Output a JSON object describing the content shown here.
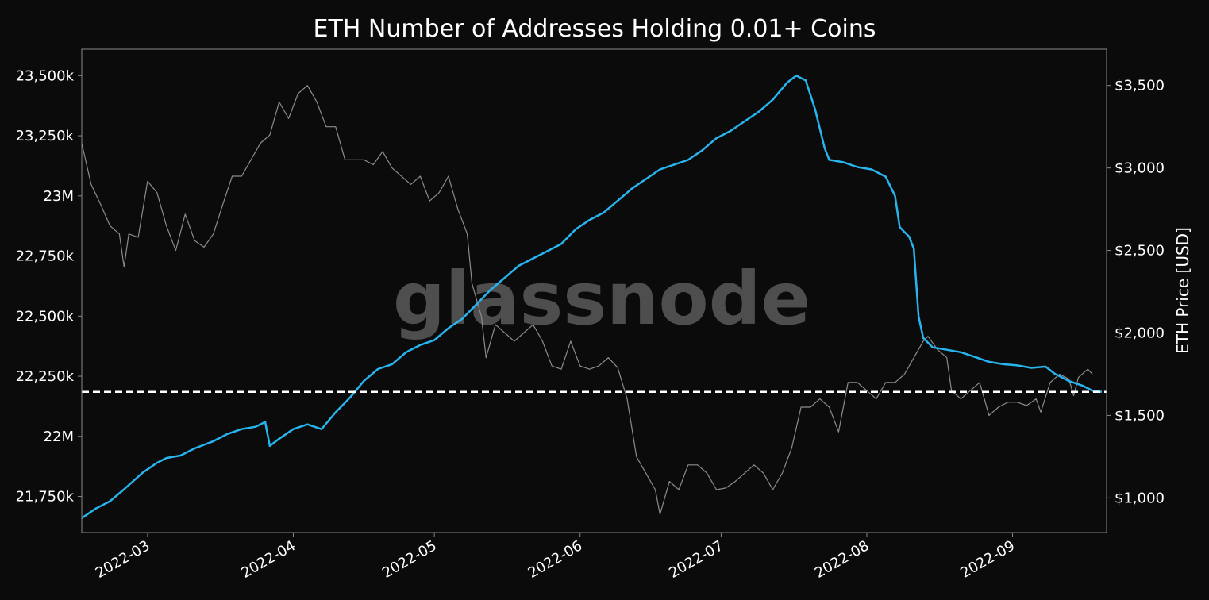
{
  "watermark": "glassnode",
  "colors": {
    "background": "#0b0b0b",
    "plot_background": "#0b0b0b",
    "addresses_line": "#28b4ee",
    "price_line": "#8c8c8c",
    "reference_line": "#ffffff",
    "text": "#ffffff",
    "axis": "#888888"
  },
  "chart_data": {
    "type": "line",
    "title": "ETH Number of Addresses Holding 0.01+ Coins",
    "xlabel": "",
    "ylabel_left": "",
    "ylabel_right": "ETH Price [USD]",
    "x_range": [
      "2022-02-15",
      "2022-09-21"
    ],
    "x_ticks": [
      {
        "date": "2022-03-01",
        "label": "2022-03"
      },
      {
        "date": "2022-04-01",
        "label": "2022-04"
      },
      {
        "date": "2022-05-01",
        "label": "2022-05"
      },
      {
        "date": "2022-06-01",
        "label": "2022-06"
      },
      {
        "date": "2022-07-01",
        "label": "2022-07"
      },
      {
        "date": "2022-08-01",
        "label": "2022-08"
      },
      {
        "date": "2022-09-01",
        "label": "2022-09"
      }
    ],
    "y_left_range": [
      21600000,
      23610000
    ],
    "y_left_ticks": [
      {
        "value": 21750000,
        "label": "21,750k"
      },
      {
        "value": 22000000,
        "label": "22M"
      },
      {
        "value": 22250000,
        "label": "22,250k"
      },
      {
        "value": 22500000,
        "label": "22,500k"
      },
      {
        "value": 22750000,
        "label": "22,750k"
      },
      {
        "value": 23000000,
        "label": "23M"
      },
      {
        "value": 23250000,
        "label": "23,250k"
      },
      {
        "value": 23500000,
        "label": "23,500k"
      }
    ],
    "y_right_range": [
      790,
      3720
    ],
    "y_right_ticks": [
      {
        "value": 1000,
        "label": "$1,000"
      },
      {
        "value": 1500,
        "label": "$1,500"
      },
      {
        "value": 2000,
        "label": "$2,000"
      },
      {
        "value": 2500,
        "label": "$2,500"
      },
      {
        "value": 3000,
        "label": "$3,000"
      },
      {
        "value": 3500,
        "label": "$3,500"
      }
    ],
    "reference_line": {
      "axis": "left",
      "value": 22185000,
      "style": "dashed"
    },
    "grid": false,
    "legend": "none",
    "series": [
      {
        "axis": "left",
        "points": [
          [
            "2022-02-15",
            21660000
          ],
          [
            "2022-02-18",
            21700000
          ],
          [
            "2022-02-21",
            21730000
          ],
          [
            "2022-02-24",
            21780000
          ],
          [
            "2022-02-28",
            21850000
          ],
          [
            "2022-03-03",
            21890000
          ],
          [
            "2022-03-05",
            21910000
          ],
          [
            "2022-03-08",
            21920000
          ],
          [
            "2022-03-11",
            21950000
          ],
          [
            "2022-03-15",
            21980000
          ],
          [
            "2022-03-18",
            22010000
          ],
          [
            "2022-03-21",
            22030000
          ],
          [
            "2022-03-24",
            22040000
          ],
          [
            "2022-03-26",
            22060000
          ],
          [
            "2022-03-27",
            21960000
          ],
          [
            "2022-03-29",
            21990000
          ],
          [
            "2022-04-01",
            22030000
          ],
          [
            "2022-04-04",
            22050000
          ],
          [
            "2022-04-07",
            22030000
          ],
          [
            "2022-04-10",
            22100000
          ],
          [
            "2022-04-13",
            22160000
          ],
          [
            "2022-04-16",
            22230000
          ],
          [
            "2022-04-19",
            22280000
          ],
          [
            "2022-04-22",
            22300000
          ],
          [
            "2022-04-25",
            22350000
          ],
          [
            "2022-04-28",
            22380000
          ],
          [
            "2022-05-01",
            22400000
          ],
          [
            "2022-05-04",
            22450000
          ],
          [
            "2022-05-07",
            22490000
          ],
          [
            "2022-05-10",
            22550000
          ],
          [
            "2022-05-13",
            22610000
          ],
          [
            "2022-05-16",
            22660000
          ],
          [
            "2022-05-19",
            22710000
          ],
          [
            "2022-05-22",
            22740000
          ],
          [
            "2022-05-25",
            22770000
          ],
          [
            "2022-05-28",
            22800000
          ],
          [
            "2022-05-31",
            22860000
          ],
          [
            "2022-06-03",
            22900000
          ],
          [
            "2022-06-06",
            22930000
          ],
          [
            "2022-06-09",
            22980000
          ],
          [
            "2022-06-12",
            23030000
          ],
          [
            "2022-06-15",
            23070000
          ],
          [
            "2022-06-18",
            23110000
          ],
          [
            "2022-06-21",
            23130000
          ],
          [
            "2022-06-24",
            23150000
          ],
          [
            "2022-06-27",
            23190000
          ],
          [
            "2022-06-30",
            23240000
          ],
          [
            "2022-07-03",
            23270000
          ],
          [
            "2022-07-06",
            23310000
          ],
          [
            "2022-07-09",
            23350000
          ],
          [
            "2022-07-12",
            23400000
          ],
          [
            "2022-07-15",
            23470000
          ],
          [
            "2022-07-17",
            23500000
          ],
          [
            "2022-07-19",
            23480000
          ],
          [
            "2022-07-21",
            23360000
          ],
          [
            "2022-07-23",
            23200000
          ],
          [
            "2022-07-24",
            23150000
          ],
          [
            "2022-07-27",
            23140000
          ],
          [
            "2022-07-30",
            23120000
          ],
          [
            "2022-08-02",
            23110000
          ],
          [
            "2022-08-05",
            23080000
          ],
          [
            "2022-08-07",
            23000000
          ],
          [
            "2022-08-08",
            22870000
          ],
          [
            "2022-08-10",
            22830000
          ],
          [
            "2022-08-11",
            22780000
          ],
          [
            "2022-08-12",
            22500000
          ],
          [
            "2022-08-13",
            22410000
          ],
          [
            "2022-08-15",
            22370000
          ],
          [
            "2022-08-18",
            22360000
          ],
          [
            "2022-08-21",
            22350000
          ],
          [
            "2022-08-24",
            22330000
          ],
          [
            "2022-08-27",
            22310000
          ],
          [
            "2022-08-30",
            22300000
          ],
          [
            "2022-09-02",
            22295000
          ],
          [
            "2022-09-05",
            22285000
          ],
          [
            "2022-09-08",
            22290000
          ],
          [
            "2022-09-10",
            22260000
          ],
          [
            "2022-09-13",
            22230000
          ],
          [
            "2022-09-16",
            22210000
          ],
          [
            "2022-09-18",
            22190000
          ],
          [
            "2022-09-20",
            22185000
          ]
        ]
      },
      {
        "axis": "right",
        "points": [
          [
            "2022-02-15",
            3150
          ],
          [
            "2022-02-17",
            2900
          ],
          [
            "2022-02-19",
            2780
          ],
          [
            "2022-02-21",
            2650
          ],
          [
            "2022-02-23",
            2600
          ],
          [
            "2022-02-24",
            2400
          ],
          [
            "2022-02-25",
            2600
          ],
          [
            "2022-02-27",
            2580
          ],
          [
            "2022-03-01",
            2920
          ],
          [
            "2022-03-03",
            2850
          ],
          [
            "2022-03-05",
            2650
          ],
          [
            "2022-03-07",
            2500
          ],
          [
            "2022-03-09",
            2720
          ],
          [
            "2022-03-11",
            2560
          ],
          [
            "2022-03-13",
            2520
          ],
          [
            "2022-03-15",
            2600
          ],
          [
            "2022-03-17",
            2780
          ],
          [
            "2022-03-19",
            2950
          ],
          [
            "2022-03-21",
            2950
          ],
          [
            "2022-03-23",
            3050
          ],
          [
            "2022-03-25",
            3150
          ],
          [
            "2022-03-27",
            3200
          ],
          [
            "2022-03-29",
            3400
          ],
          [
            "2022-03-31",
            3300
          ],
          [
            "2022-04-02",
            3450
          ],
          [
            "2022-04-04",
            3500
          ],
          [
            "2022-04-06",
            3400
          ],
          [
            "2022-04-08",
            3250
          ],
          [
            "2022-04-10",
            3250
          ],
          [
            "2022-04-12",
            3050
          ],
          [
            "2022-04-14",
            3050
          ],
          [
            "2022-04-16",
            3050
          ],
          [
            "2022-04-18",
            3020
          ],
          [
            "2022-04-20",
            3100
          ],
          [
            "2022-04-22",
            3000
          ],
          [
            "2022-04-24",
            2950
          ],
          [
            "2022-04-26",
            2900
          ],
          [
            "2022-04-28",
            2950
          ],
          [
            "2022-04-30",
            2800
          ],
          [
            "2022-05-02",
            2850
          ],
          [
            "2022-05-04",
            2950
          ],
          [
            "2022-05-06",
            2750
          ],
          [
            "2022-05-08",
            2600
          ],
          [
            "2022-05-09",
            2300
          ],
          [
            "2022-05-11",
            2100
          ],
          [
            "2022-05-12",
            1850
          ],
          [
            "2022-05-14",
            2050
          ],
          [
            "2022-05-16",
            2000
          ],
          [
            "2022-05-18",
            1950
          ],
          [
            "2022-05-20",
            2000
          ],
          [
            "2022-05-22",
            2050
          ],
          [
            "2022-05-24",
            1950
          ],
          [
            "2022-05-26",
            1800
          ],
          [
            "2022-05-28",
            1780
          ],
          [
            "2022-05-30",
            1950
          ],
          [
            "2022-06-01",
            1800
          ],
          [
            "2022-06-03",
            1780
          ],
          [
            "2022-06-05",
            1800
          ],
          [
            "2022-06-07",
            1850
          ],
          [
            "2022-06-09",
            1790
          ],
          [
            "2022-06-11",
            1600
          ],
          [
            "2022-06-13",
            1250
          ],
          [
            "2022-06-15",
            1150
          ],
          [
            "2022-06-17",
            1050
          ],
          [
            "2022-06-18",
            900
          ],
          [
            "2022-06-20",
            1100
          ],
          [
            "2022-06-22",
            1050
          ],
          [
            "2022-06-24",
            1200
          ],
          [
            "2022-06-26",
            1200
          ],
          [
            "2022-06-28",
            1150
          ],
          [
            "2022-06-30",
            1050
          ],
          [
            "2022-07-02",
            1060
          ],
          [
            "2022-07-04",
            1100
          ],
          [
            "2022-07-06",
            1150
          ],
          [
            "2022-07-08",
            1200
          ],
          [
            "2022-07-10",
            1150
          ],
          [
            "2022-07-12",
            1050
          ],
          [
            "2022-07-14",
            1150
          ],
          [
            "2022-07-16",
            1300
          ],
          [
            "2022-07-18",
            1550
          ],
          [
            "2022-07-20",
            1550
          ],
          [
            "2022-07-22",
            1600
          ],
          [
            "2022-07-24",
            1550
          ],
          [
            "2022-07-26",
            1400
          ],
          [
            "2022-07-28",
            1700
          ],
          [
            "2022-07-30",
            1700
          ],
          [
            "2022-08-01",
            1650
          ],
          [
            "2022-08-03",
            1600
          ],
          [
            "2022-08-05",
            1700
          ],
          [
            "2022-08-07",
            1700
          ],
          [
            "2022-08-09",
            1750
          ],
          [
            "2022-08-11",
            1850
          ],
          [
            "2022-08-13",
            1950
          ],
          [
            "2022-08-14",
            1980
          ],
          [
            "2022-08-16",
            1900
          ],
          [
            "2022-08-18",
            1850
          ],
          [
            "2022-08-19",
            1650
          ],
          [
            "2022-08-21",
            1600
          ],
          [
            "2022-08-23",
            1650
          ],
          [
            "2022-08-25",
            1700
          ],
          [
            "2022-08-27",
            1500
          ],
          [
            "2022-08-29",
            1550
          ],
          [
            "2022-08-31",
            1580
          ],
          [
            "2022-09-02",
            1580
          ],
          [
            "2022-09-04",
            1560
          ],
          [
            "2022-09-06",
            1600
          ],
          [
            "2022-09-07",
            1520
          ],
          [
            "2022-09-09",
            1700
          ],
          [
            "2022-09-11",
            1750
          ],
          [
            "2022-09-13",
            1720
          ],
          [
            "2022-09-14",
            1620
          ],
          [
            "2022-09-15",
            1730
          ],
          [
            "2022-09-17",
            1780
          ],
          [
            "2022-09-18",
            1750
          ]
        ]
      }
    ]
  }
}
